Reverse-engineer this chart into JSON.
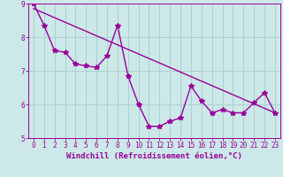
{
  "xlabel": "Windchill (Refroidissement éolien,°C)",
  "xlim": [
    -0.5,
    23.5
  ],
  "ylim": [
    5,
    9
  ],
  "xticks": [
    0,
    1,
    2,
    3,
    4,
    5,
    6,
    7,
    8,
    9,
    10,
    11,
    12,
    13,
    14,
    15,
    16,
    17,
    18,
    19,
    20,
    21,
    22,
    23
  ],
  "yticks": [
    5,
    6,
    7,
    8,
    9
  ],
  "bg_color": "#cce8e8",
  "grid_color": "#aad0d0",
  "line_color": "#990099",
  "data_x": [
    0,
    1,
    2,
    3,
    4,
    5,
    6,
    7,
    8,
    9,
    10,
    11,
    12,
    13,
    14,
    15,
    16,
    17,
    18,
    19,
    20,
    21,
    22,
    23
  ],
  "data_y": [
    9.0,
    8.35,
    7.6,
    7.55,
    7.2,
    7.15,
    7.1,
    7.45,
    8.35,
    6.85,
    6.0,
    5.35,
    5.35,
    5.5,
    5.6,
    6.55,
    6.1,
    5.75,
    5.85,
    5.75,
    5.75,
    6.05,
    6.35,
    5.75
  ],
  "trend_x": [
    0,
    23
  ],
  "trend_y": [
    8.85,
    5.75
  ],
  "marker": "*",
  "markersize": 4,
  "linewidth": 1.0,
  "tick_fontsize": 5.5,
  "label_fontsize": 6.5
}
